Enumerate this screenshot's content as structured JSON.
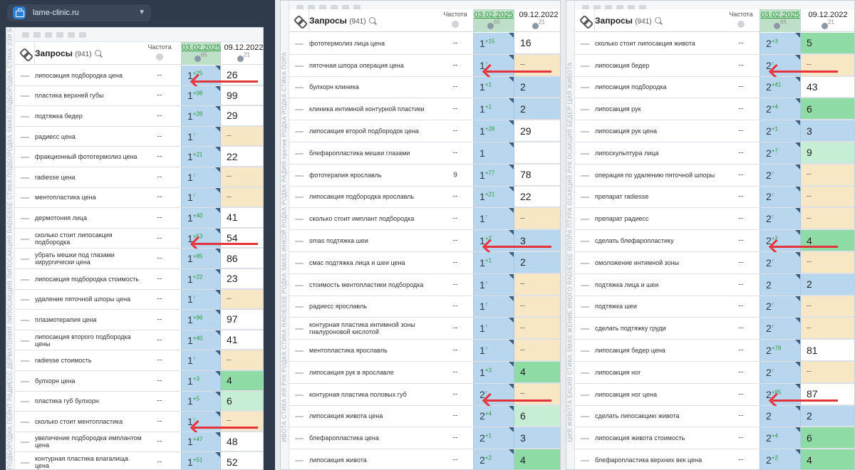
{
  "site": {
    "name": "lame-clinic.ru"
  },
  "header": {
    "query_title": "Запросы",
    "query_count": "(941)",
    "freq_label": "Частота",
    "date1": "03.02.2025",
    "date1_count": "65",
    "date2": "09.12.2022",
    "date2_count": "21"
  },
  "colors": {
    "blue": "#b8d6ee",
    "peach": "#f7e7c4",
    "green": "#8fdba5",
    "lightgreen": "#c5eed4",
    "white": "#ffffff",
    "arrow": "#e5333b"
  },
  "panels": [
    {
      "strip_text": "ПОДБОРОДКА ПЕЙНТ РАДИЕСС ДЕРМАТОНИЯ ЛИПОСАКЦИЯ ЛИПОСАКЦИЯ RADIESSE СТИКА ПОДБОРОДКА SMAS ПОДБОРОДКА СТИКА УЗИ БУЛХОРН ПЛАСТИКА ПОДБОРОДКА",
      "rows": [
        {
          "q": "липосакция подбородка цена",
          "f": "--",
          "p1": "1",
          "s1": "+25",
          "p2": "26",
          "c2": "white",
          "arrow": true
        },
        {
          "q": "пластика верхней губы",
          "f": "--",
          "p1": "1",
          "s1": "+98",
          "p2": "99",
          "c2": "white"
        },
        {
          "q": "подтяжка бедер",
          "f": "--",
          "p1": "1",
          "s1": "+28",
          "p2": "29",
          "c2": "white"
        },
        {
          "q": "радиесс цена",
          "f": "--",
          "p1": "1",
          "s1": "↑",
          "p2": "--",
          "c2": "peach"
        },
        {
          "q": "фракционный фототермолиз цена",
          "f": "--",
          "p1": "1",
          "s1": "+21",
          "p2": "22",
          "c2": "white"
        },
        {
          "q": "radiesse цена",
          "f": "--",
          "p1": "1",
          "s1": "↑",
          "p2": "--",
          "c2": "peach"
        },
        {
          "q": "ментопластика цена",
          "f": "--",
          "p1": "1",
          "s1": "↑",
          "p2": "--",
          "c2": "peach"
        },
        {
          "q": "дермотония лица",
          "f": "--",
          "p1": "1",
          "s1": "+40",
          "p2": "41",
          "c2": "white"
        },
        {
          "q": "сколько стоит липосакция подбородка",
          "f": "--",
          "p1": "1",
          "s1": "+53",
          "p2": "54",
          "c2": "white",
          "arrow": true
        },
        {
          "q": "убрать мешки под глазами хирургически цена",
          "f": "--",
          "p1": "1",
          "s1": "+85",
          "p2": "86",
          "c2": "white"
        },
        {
          "q": "липосакция подбородка стоимость",
          "f": "--",
          "p1": "1",
          "s1": "+22",
          "p2": "23",
          "c2": "white"
        },
        {
          "q": "удаление пяточной шпоры цена",
          "f": "--",
          "p1": "1",
          "s1": "↑",
          "p2": "--",
          "c2": "peach"
        },
        {
          "q": "плазмотерапия цена",
          "f": "--",
          "p1": "1",
          "s1": "+96",
          "p2": "97",
          "c2": "white"
        },
        {
          "q": "липосакция второго подбородка цены",
          "f": "--",
          "p1": "1",
          "s1": "+40",
          "p2": "41",
          "c2": "white"
        },
        {
          "q": "radiesse стоимость",
          "f": "--",
          "p1": "1",
          "s1": "↑",
          "p2": "--",
          "c2": "peach"
        },
        {
          "q": "булхорн цена",
          "f": "--",
          "p1": "1",
          "s1": "+3",
          "p2": "4",
          "c2": "green"
        },
        {
          "q": "пластика губ булхорн",
          "f": "--",
          "p1": "1",
          "s1": "+5",
          "p2": "6",
          "c2": "lightgreen"
        },
        {
          "q": "сколько стоит ментопластика",
          "f": "--",
          "p1": "1",
          "s1": "↑",
          "p2": "--",
          "c2": "peach",
          "arrow": true
        },
        {
          "q": "увеличение подбородка имплантом цена",
          "f": "--",
          "p1": "1",
          "s1": "+47",
          "p2": "48",
          "c2": "white"
        },
        {
          "q": "контурная пластика влагалища цена",
          "f": "--",
          "p1": "1",
          "s1": "+51",
          "p2": "52",
          "c2": "white"
        }
      ]
    },
    {
      "strip_text": "ИВОТА СТИКА ИЯ РУК РОДКА СТИКА RADIESSE РОДКА SMAS ИНКОЙ РОДКА РОДКА РАДИЯ против РОДКА РОДКА СТИКА ПОРА",
      "rows": [
        {
          "q": "фототермолиз лица цена",
          "f": "--",
          "p1": "1",
          "s1": "+15",
          "p2": "16",
          "c2": "white"
        },
        {
          "q": "пяточная шпора операция цена",
          "f": "--",
          "p1": "1",
          "s1": "↑",
          "p2": "--",
          "c2": "peach",
          "arrow": true
        },
        {
          "q": "булхорн клиника",
          "f": "--",
          "p1": "1",
          "s1": "+1",
          "p2": "2",
          "c2": "blue"
        },
        {
          "q": "клиника интимной контурной пластики",
          "f": "--",
          "p1": "1",
          "s1": "+1",
          "p2": "2",
          "c2": "blue"
        },
        {
          "q": "липосакция второй подбородок цена",
          "f": "--",
          "p1": "1",
          "s1": "+28",
          "p2": "29",
          "c2": "white"
        },
        {
          "q": "блефаропластика мешки глазами",
          "f": "--",
          "p1": "1",
          "s1": "",
          "p2": "",
          "c2": "white"
        },
        {
          "q": "фототерапия ярославль",
          "f": "9",
          "p1": "1",
          "s1": "+77",
          "p2": "78",
          "c2": "white"
        },
        {
          "q": "липосакция подбородка ярославль",
          "f": "--",
          "p1": "1",
          "s1": "+21",
          "p2": "22",
          "c2": "white"
        },
        {
          "q": "сколько стоит имплант подбородка",
          "f": "--",
          "p1": "1",
          "s1": "↑",
          "p2": "--",
          "c2": "peach"
        },
        {
          "q": "smas подтяжка шеи",
          "f": "--",
          "p1": "1",
          "s1": "+2",
          "p2": "3",
          "c2": "blue",
          "arrow": true
        },
        {
          "q": "смас подтяжка лица и шеи цена",
          "f": "--",
          "p1": "1",
          "s1": "+1",
          "p2": "2",
          "c2": "blue"
        },
        {
          "q": "стоимость ментопластики подбородка",
          "f": "--",
          "p1": "1",
          "s1": "↑",
          "p2": "--",
          "c2": "peach"
        },
        {
          "q": "радиесс ярославль",
          "f": "--",
          "p1": "1",
          "s1": "↑",
          "p2": "--",
          "c2": "peach"
        },
        {
          "q": "контурная пластика интимной зоны гиалуроновой кислотой",
          "f": "--",
          "p1": "1",
          "s1": "↑",
          "p2": "--",
          "c2": "peach"
        },
        {
          "q": "ментопластика ярославль",
          "f": "--",
          "p1": "1",
          "s1": "↑",
          "p2": "--",
          "c2": "peach"
        },
        {
          "q": "липосакция рук в ярославле",
          "f": "--",
          "p1": "1",
          "s1": "+3",
          "p2": "4",
          "c2": "green"
        },
        {
          "q": "контурная пластика половых губ",
          "f": "--",
          "p1": "2",
          "s1": "↑",
          "p2": "--",
          "c2": "peach",
          "arrow": true
        },
        {
          "q": "липосакция живота цена",
          "f": "--",
          "p1": "2",
          "s1": "+4",
          "p2": "6",
          "c2": "lightgreen"
        },
        {
          "q": "блефаропластика цена",
          "f": "--",
          "p1": "2",
          "s1": "+1",
          "p2": "3",
          "c2": "blue"
        },
        {
          "q": "липосакция живота",
          "f": "--",
          "p1": "2",
          "s1": "+2",
          "p2": "4",
          "c2": "green"
        }
      ]
    },
    {
      "strip_text": "ЦИЯ ЖИВОТА ЕКСИЯ СТИКА SMAS ЖЕНИЕ ИНОГО RADIESSE ЯПОРА ПТУРА ОСАКЦИЯ РУК ОСАКЦИЯ БЕДЕР ЦИЯ ЖИВОТА",
      "rows": [
        {
          "q": "сколько стоит липосакция живота",
          "f": "--",
          "p1": "2",
          "s1": "+3",
          "p2": "5",
          "c2": "green"
        },
        {
          "q": "липосакция бедер",
          "f": "--",
          "p1": "2",
          "s1": "↑",
          "p2": "--",
          "c2": "peach",
          "arrow": true
        },
        {
          "q": "липосакция подбородка",
          "f": "--",
          "p1": "2",
          "s1": "+41",
          "p2": "43",
          "c2": "white"
        },
        {
          "q": "липосакция рук",
          "f": "--",
          "p1": "2",
          "s1": "+4",
          "p2": "6",
          "c2": "green"
        },
        {
          "q": "липосакция рук цена",
          "f": "--",
          "p1": "2",
          "s1": "+1",
          "p2": "3",
          "c2": "blue"
        },
        {
          "q": "липоскульптура лица",
          "f": "--",
          "p1": "2",
          "s1": "+7",
          "p2": "9",
          "c2": "lightgreen"
        },
        {
          "q": "операция по удалению пяточной шпоры",
          "f": "--",
          "p1": "2",
          "s1": "↑",
          "p2": "--",
          "c2": "peach"
        },
        {
          "q": "препарат radiesse",
          "f": "--",
          "p1": "2",
          "s1": "↑",
          "p2": "--",
          "c2": "peach"
        },
        {
          "q": "препарат радиесс",
          "f": "--",
          "p1": "2",
          "s1": "↑",
          "p2": "--",
          "c2": "peach"
        },
        {
          "q": "сделать блефаропластику",
          "f": "--",
          "p1": "2",
          "s1": "+2",
          "p2": "4",
          "c2": "green",
          "arrow": true
        },
        {
          "q": "омоложение интимной зоны",
          "f": "--",
          "p1": "2",
          "s1": "↑",
          "p2": "--",
          "c2": "peach"
        },
        {
          "q": "подтяжка лица и шеи",
          "f": "--",
          "p1": "2",
          "s1": "",
          "p2": "2",
          "c2": "blue"
        },
        {
          "q": "подтяжка шеи",
          "f": "--",
          "p1": "2",
          "s1": "↑",
          "p2": "--",
          "c2": "peach"
        },
        {
          "q": "сделать подтяжку груди",
          "f": "--",
          "p1": "2",
          "s1": "↑",
          "p2": "--",
          "c2": "peach"
        },
        {
          "q": "липосакция бедер цена",
          "f": "--",
          "p1": "2",
          "s1": "+79",
          "p2": "81",
          "c2": "white"
        },
        {
          "q": "липосакция ног",
          "f": "--",
          "p1": "2",
          "s1": "↑",
          "p2": "--",
          "c2": "peach"
        },
        {
          "q": "липосакция ног цена",
          "f": "--",
          "p1": "2",
          "s1": "+85",
          "p2": "87",
          "c2": "white",
          "arrow": true
        },
        {
          "q": "сделать липосакцию живота",
          "f": "--",
          "p1": "2",
          "s1": "",
          "p2": "2",
          "c2": "blue"
        },
        {
          "q": "липосакция живота стоимость",
          "f": "--",
          "p1": "2",
          "s1": "+4",
          "p2": "6",
          "c2": "green"
        },
        {
          "q": "блефаропластика верхних век цена",
          "f": "--",
          "p1": "2",
          "s1": "+2",
          "p2": "4",
          "c2": "green"
        }
      ]
    }
  ]
}
